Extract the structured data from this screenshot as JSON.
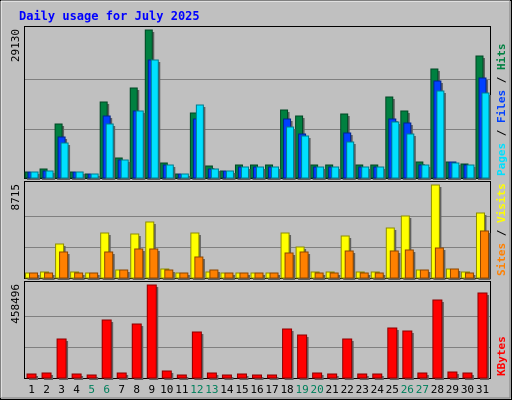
{
  "chart_data": {
    "type": "bar",
    "title": "Daily usage for July 2025",
    "days": [
      "1",
      "2",
      "3",
      "4",
      "5",
      "6",
      "7",
      "8",
      "9",
      "10",
      "11",
      "12",
      "13",
      "14",
      "15",
      "16",
      "17",
      "18",
      "19",
      "20",
      "21",
      "22",
      "23",
      "24",
      "25",
      "26",
      "27",
      "28",
      "29",
      "30",
      "31"
    ],
    "weekend_days": [
      "5",
      "6",
      "12",
      "13",
      "19",
      "20",
      "26",
      "27"
    ],
    "colors": {
      "hits": "#008040",
      "files": "#0040ff",
      "pages": "#00e0ff",
      "visits": "#ffff00",
      "sites": "#ff8000",
      "kbytes": "#ff0000",
      "title": "#0000ff",
      "weekend_label": "#00805c",
      "weekday_label": "#000000",
      "background": "#c0c0c0"
    },
    "panels": [
      {
        "id": "hits",
        "max_label": "29130",
        "ymax": 29130,
        "legend": [
          {
            "text": "Pages",
            "color": "#00e0ff"
          },
          {
            "text": " / ",
            "color": "#000000"
          },
          {
            "text": "Files",
            "color": "#0040ff"
          },
          {
            "text": " / ",
            "color": "#000000"
          },
          {
            "text": "Hits",
            "color": "#008040"
          }
        ],
        "series": [
          {
            "name": "Hits",
            "color": "#008040",
            "values": [
              1150,
              1700,
              10700,
              1150,
              870,
              15040,
              3900,
              17780,
              29130,
              2970,
              870,
              12720,
              2460,
              1450,
              2570,
              2570,
              2570,
              13470,
              12290,
              2570,
              2570,
              12580,
              2570,
              2570,
              16040,
              13160,
              3130,
              21510,
              3240,
              2820,
              24030
            ]
          },
          {
            "name": "Files",
            "color": "#0040ff",
            "values": [
              1150,
              1450,
              8050,
              1150,
              870,
              12290,
              3590,
              13220,
              23190,
              2620,
              760,
              11530,
              1720,
              1450,
              2230,
              2230,
              2230,
              11530,
              8630,
              2230,
              2230,
              8920,
              2230,
              2230,
              11530,
              10870,
              2570,
              19110,
              3130,
              2570,
              19660
            ]
          },
          {
            "name": "Pages",
            "color": "#00e0ff",
            "values": [
              1150,
              1450,
              6960,
              1150,
              760,
              10700,
              3590,
              13220,
              23190,
              2620,
              760,
              14370,
              1720,
              1450,
              2230,
              2230,
              2230,
              9950,
              8300,
              2230,
              2230,
              7000,
              2230,
              2230,
              11000,
              8630,
              2570,
              17100,
              2970,
              2570,
              16710
            ]
          }
        ]
      },
      {
        "id": "visits",
        "max_label": "8715",
        "ymax": 8715,
        "legend": [
          {
            "text": "Sites",
            "color": "#ff8000"
          },
          {
            "text": " / ",
            "color": "#000000"
          },
          {
            "text": "Visits",
            "color": "#ffff00"
          }
        ],
        "series": [
          {
            "name": "Visits",
            "color": "#ffff00",
            "values": [
              490,
              580,
              3200,
              580,
              490,
              4260,
              710,
              4140,
              5290,
              800,
              490,
              4260,
              580,
              490,
              490,
              490,
              490,
              4260,
              2930,
              580,
              580,
              3910,
              580,
              580,
              4710,
              5770,
              710,
              8715,
              890,
              580,
              6130
            ]
          },
          {
            "name": "Sites",
            "color": "#ff8000",
            "values": [
              490,
              490,
              2400,
              490,
              490,
              2400,
              710,
              2760,
              2760,
              710,
              490,
              1960,
              710,
              490,
              490,
              490,
              490,
              2310,
              2400,
              490,
              490,
              2490,
              490,
              490,
              2490,
              2580,
              710,
              2850,
              800,
              490,
              4440
            ]
          }
        ]
      },
      {
        "id": "kbytes",
        "max_label": "458496",
        "ymax": 458496,
        "legend": [
          {
            "text": "KBytes",
            "color": "#ff0000"
          }
        ],
        "series": [
          {
            "name": "KBytes",
            "color": "#ff0000",
            "values": [
              18000,
              23000,
              190000,
              20000,
              16000,
              288000,
              23000,
              265000,
              458496,
              36000,
              16000,
              226000,
              25000,
              16000,
              20000,
              15000,
              15000,
              240000,
              210000,
              25000,
              20000,
              194000,
              20000,
              20000,
              246000,
              233000,
              25000,
              387000,
              32000,
              25000,
              420000
            ]
          }
        ]
      }
    ]
  }
}
